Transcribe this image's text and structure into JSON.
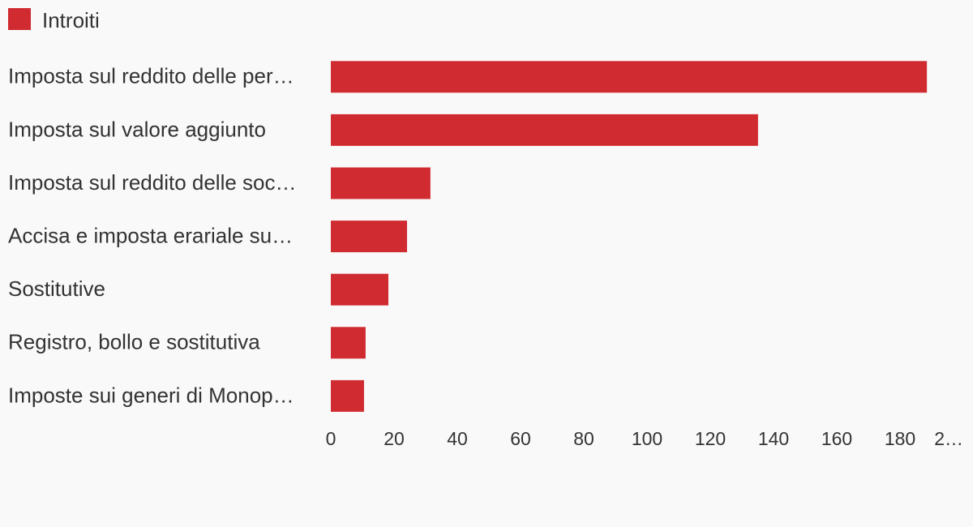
{
  "chart_data": {
    "type": "bar",
    "orientation": "horizontal",
    "categories": [
      "Imposta sul reddito delle per…",
      "Imposta sul valore aggiunto",
      "Imposta sul reddito delle soc…",
      "Accisa e imposta erariale su…",
      "Sostitutive",
      "Registro, bollo e sostitutiva",
      "Imposte sui generi di Monop…"
    ],
    "series": [
      {
        "name": "Introiti",
        "color": "#d02b31",
        "values": [
          188.5,
          135.1,
          31.5,
          24.1,
          18.2,
          11.0,
          10.5
        ]
      }
    ],
    "xlim": [
      0,
      200
    ],
    "xticks": [
      0,
      20,
      40,
      60,
      80,
      100,
      120,
      140,
      160,
      180,
      {
        "value": 200,
        "label": "2…"
      }
    ],
    "grid": false,
    "legend": "top-left"
  }
}
